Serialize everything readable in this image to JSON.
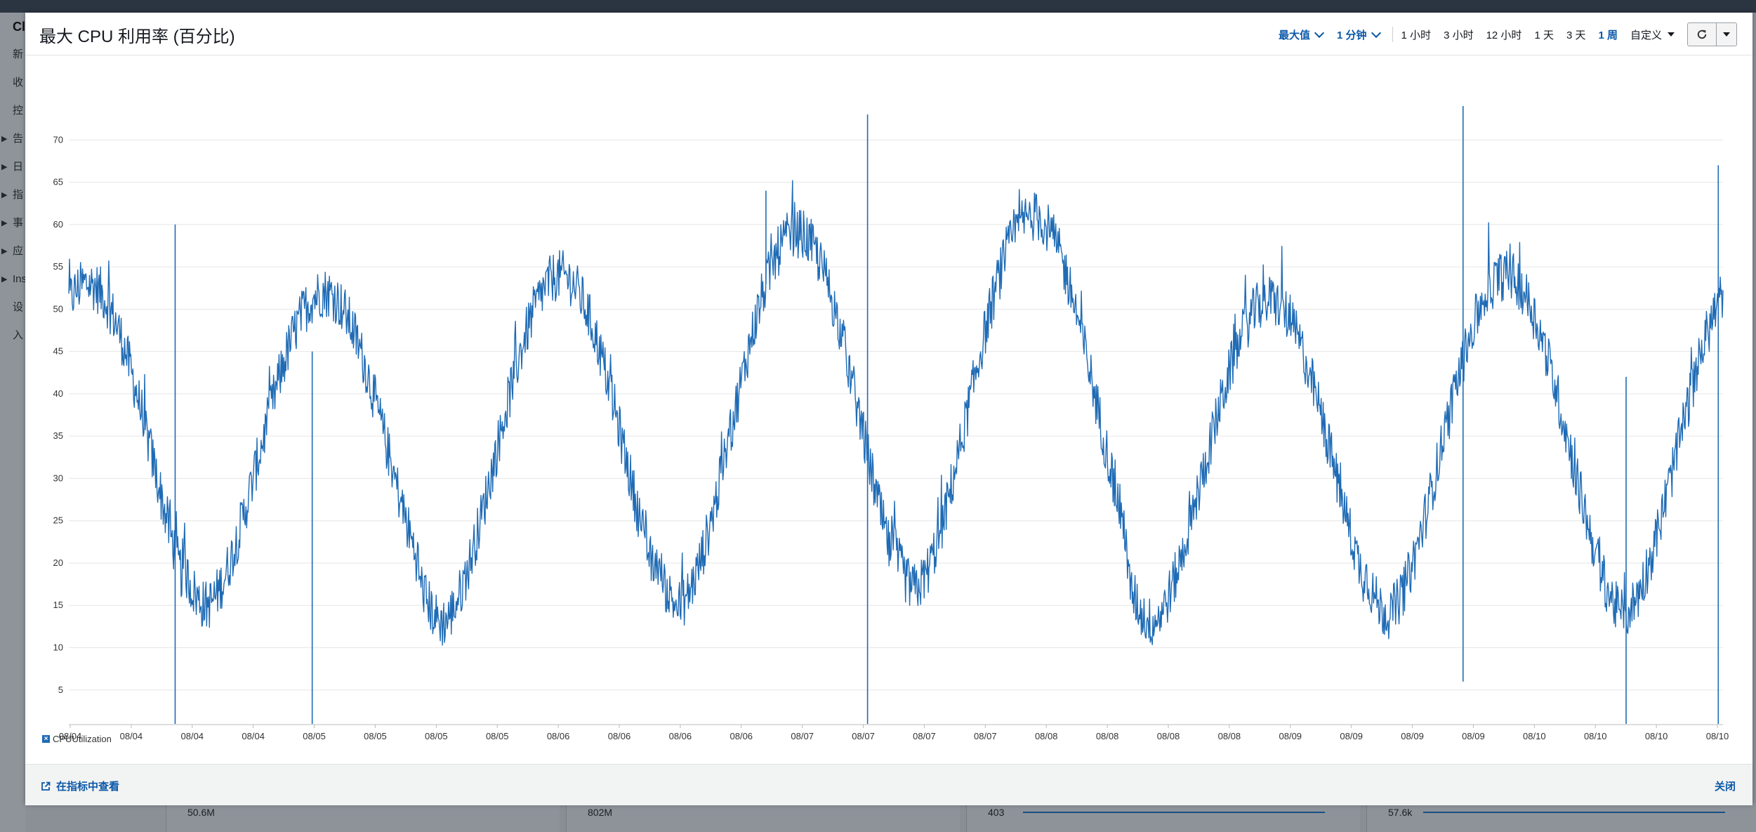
{
  "background": {
    "app_label": "Cl",
    "sidebar_items": [
      "新",
      "收",
      "控",
      "告",
      "日",
      "指",
      "事",
      "应",
      "Ins",
      "设",
      "入"
    ],
    "mini_values": [
      "50.6M",
      "802M",
      "403",
      "57.6k"
    ]
  },
  "modal": {
    "title": "最大 CPU 利用率 (百分比)",
    "stat_label": "最大值",
    "period_label": "1 分钟",
    "ranges": [
      "1 小时",
      "3 小时",
      "12 小时",
      "1 天",
      "3 天",
      "1 周"
    ],
    "active_range": "1 周",
    "custom_label": "自定义",
    "refresh_icon": "refresh-icon",
    "more_icon": "caret-down-icon"
  },
  "legend": {
    "series_name": "CPUUtilization"
  },
  "footer": {
    "view_in_metrics": "在指标中查看",
    "close": "关闭"
  },
  "colors": {
    "series": "#1f6bb5",
    "accent": "#0a58a8"
  },
  "chart_data": {
    "type": "line",
    "ylabel": "",
    "xlabel": "",
    "ylim": [
      1,
      75
    ],
    "yticks": [
      5,
      10,
      15,
      20,
      25,
      30,
      35,
      40,
      45,
      50,
      55,
      60,
      65,
      70
    ],
    "xtick_labels": [
      "08/04",
      "08/04",
      "08/04",
      "08/04",
      "08/05",
      "08/05",
      "08/05",
      "08/05",
      "08/06",
      "08/06",
      "08/06",
      "08/06",
      "08/07",
      "08/07",
      "08/07",
      "08/07",
      "08/08",
      "08/08",
      "08/08",
      "08/08",
      "08/09",
      "08/09",
      "08/09",
      "08/09",
      "08/10",
      "08/10",
      "08/10",
      "08/10"
    ],
    "grid": "horizontal",
    "series": [
      {
        "name": "CPUUtilization",
        "daily_peaks": [
          53,
          52,
          54,
          59,
          61,
          51,
          54
        ],
        "daily_troughs": [
          13,
          15,
          13,
          15,
          17,
          13,
          14
        ],
        "spikes": [
          {
            "day": 0.45,
            "values": [
              60,
              1
            ]
          },
          {
            "day": 1.03,
            "values": [
              45,
              1
            ]
          },
          {
            "day": 2.95,
            "values": [
              64
            ]
          },
          {
            "day": 3.38,
            "values": [
              73,
              1
            ]
          },
          {
            "day": 5.9,
            "values": [
              74,
              6
            ]
          },
          {
            "day": 6.59,
            "values": [
              42,
              1
            ]
          },
          {
            "day": 6.98,
            "values": [
              67,
              1
            ]
          }
        ]
      }
    ]
  }
}
